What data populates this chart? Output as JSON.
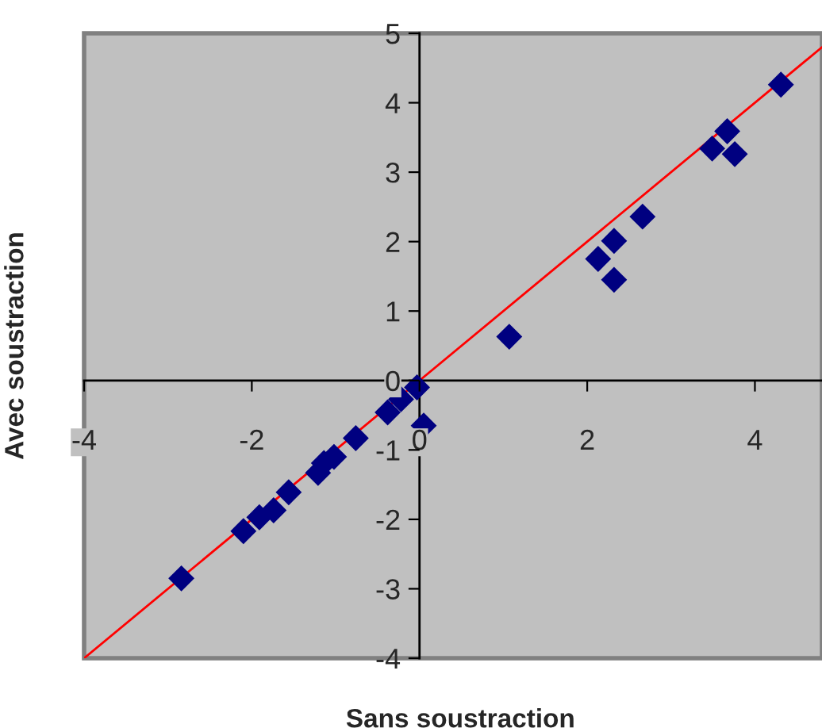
{
  "chart_data": {
    "type": "scatter",
    "xlabel": "Sans soustraction",
    "ylabel": "Avec soustraction",
    "x": [
      -2.84,
      -2.1,
      -1.91,
      -1.74,
      -1.56,
      -1.21,
      -1.14,
      -1.02,
      -0.76,
      -0.38,
      -0.22,
      -0.03,
      0.05,
      1.07,
      2.13,
      2.32,
      2.32,
      2.66,
      3.49,
      3.67,
      3.76,
      4.31
    ],
    "series": [
      {
        "color": "#000080",
        "marker": "diamond",
        "values": [
          -2.85,
          -2.17,
          -1.97,
          -1.87,
          -1.61,
          -1.33,
          -1.19,
          -1.1,
          -0.83,
          -0.46,
          -0.27,
          -0.1,
          -0.65,
          0.63,
          1.75,
          2.01,
          1.45,
          2.36,
          3.34,
          3.59,
          3.26,
          4.26
        ]
      },
      {
        "type": "line",
        "color": "#ff0000",
        "marker": "none",
        "line_style": "solid",
        "x": [
          -4,
          4.8
        ],
        "values": [
          -4,
          4.8
        ]
      }
    ],
    "xlim": [
      -4,
      4.8
    ],
    "ylim": [
      -4,
      5
    ],
    "xticks": [
      -4,
      -2,
      0,
      2,
      4
    ],
    "yticks": [
      -4,
      -3,
      -2,
      -1,
      0,
      1,
      2,
      3,
      4,
      5
    ],
    "grid": false,
    "legend": false
  }
}
